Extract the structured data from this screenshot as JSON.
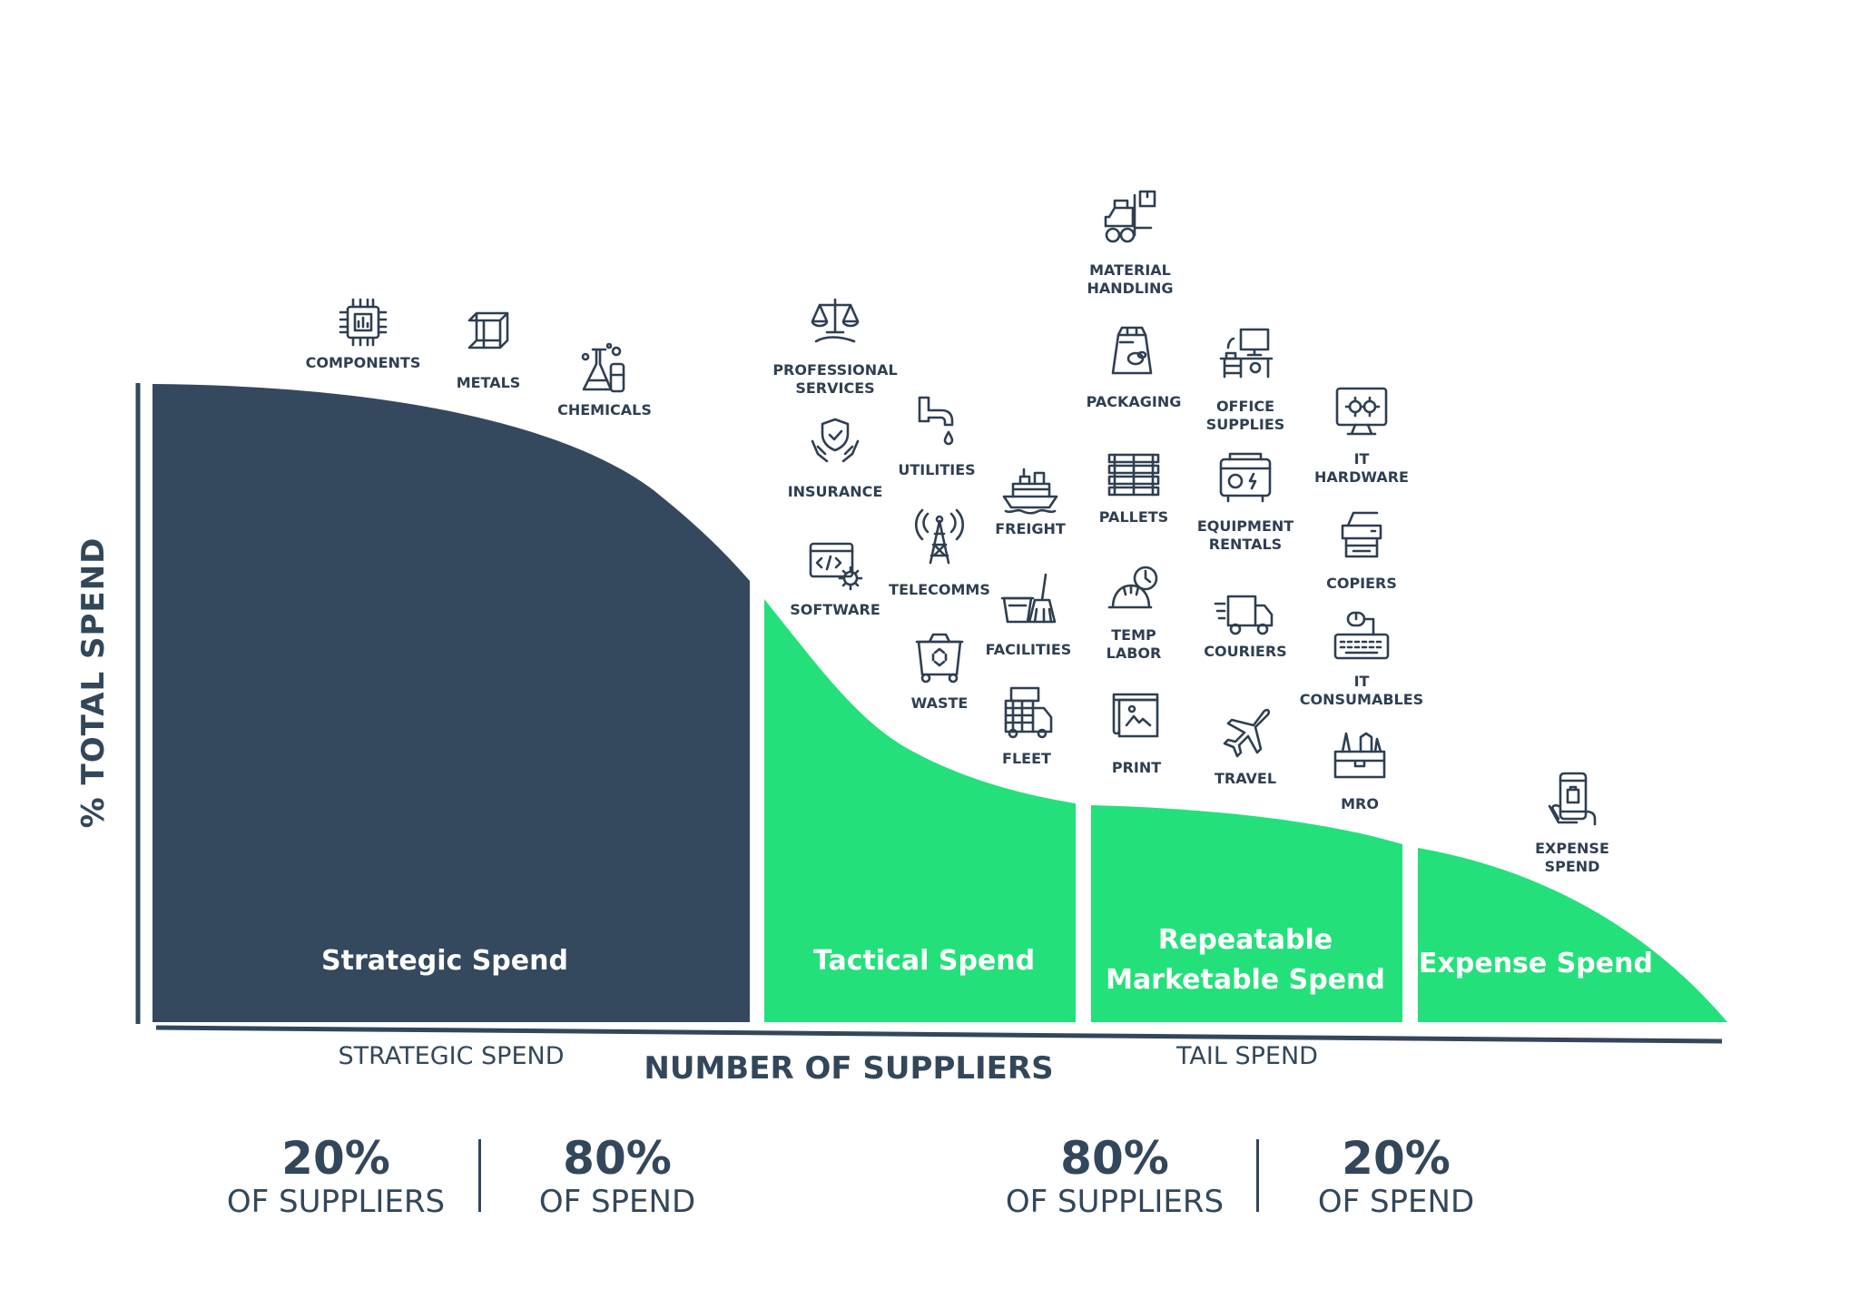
{
  "colors": {
    "strategic": "#34495e",
    "tail": "#24e07a",
    "text": "#2f3f52",
    "axis": "#33475b"
  },
  "axes": {
    "y_label": "% TOTAL SPEND",
    "x_label": "NUMBER OF SUPPLIERS"
  },
  "regions": [
    {
      "label": "Strategic Spend"
    },
    {
      "label": "Tactical Spend"
    },
    {
      "label": "Repeatable\nMarketable Spend"
    },
    {
      "label": "Expense Spend"
    }
  ],
  "spend_categories": {
    "strategic": "STRATEGIC SPEND",
    "tail": "TAIL SPEND"
  },
  "stats": [
    {
      "pct": "20%",
      "desc": "OF SUPPLIERS"
    },
    {
      "pct": "80%",
      "desc": "OF SPEND"
    },
    {
      "pct": "80%",
      "desc": "OF SUPPLIERS"
    },
    {
      "pct": "20%",
      "desc": "OF SPEND"
    }
  ],
  "categories": [
    {
      "name": "COMPONENTS",
      "icon": "chip-icon"
    },
    {
      "name": "METALS",
      "icon": "steel-beam-icon"
    },
    {
      "name": "CHEMICALS",
      "icon": "flask-icon"
    },
    {
      "name": "PROFESSIONAL\nSERVICES",
      "icon": "scales-icon"
    },
    {
      "name": "INSURANCE",
      "icon": "shield-hands-icon"
    },
    {
      "name": "SOFTWARE",
      "icon": "code-gear-icon"
    },
    {
      "name": "UTILITIES",
      "icon": "faucet-icon"
    },
    {
      "name": "TELECOMMS",
      "icon": "tower-icon"
    },
    {
      "name": "WASTE",
      "icon": "recycle-bin-icon"
    },
    {
      "name": "FREIGHT",
      "icon": "ship-icon"
    },
    {
      "name": "FACILITIES",
      "icon": "bucket-broom-icon"
    },
    {
      "name": "FLEET",
      "icon": "truck-fleet-icon"
    },
    {
      "name": "MATERIAL\nHANDLING",
      "icon": "forklift-icon"
    },
    {
      "name": "PACKAGING",
      "icon": "bag-icon"
    },
    {
      "name": "PALLETS",
      "icon": "pallet-icon"
    },
    {
      "name": "TEMP\nLABOR",
      "icon": "hardhat-clock-icon"
    },
    {
      "name": "PRINT",
      "icon": "print-scroll-icon"
    },
    {
      "name": "OFFICE\nSUPPLIES",
      "icon": "desk-icon"
    },
    {
      "name": "EQUIPMENT\nRENTALS",
      "icon": "generator-icon"
    },
    {
      "name": "COURIERS",
      "icon": "delivery-truck-icon"
    },
    {
      "name": "TRAVEL",
      "icon": "airplane-icon"
    },
    {
      "name": "IT\nHARDWARE",
      "icon": "monitor-gear-icon"
    },
    {
      "name": "COPIERS",
      "icon": "copier-icon"
    },
    {
      "name": "IT\nCONSUMABLES",
      "icon": "keyboard-mouse-icon"
    },
    {
      "name": "MRO",
      "icon": "toolbox-icon"
    },
    {
      "name": "EXPENSE\nSPEND",
      "icon": "phone-hand-icon"
    }
  ]
}
